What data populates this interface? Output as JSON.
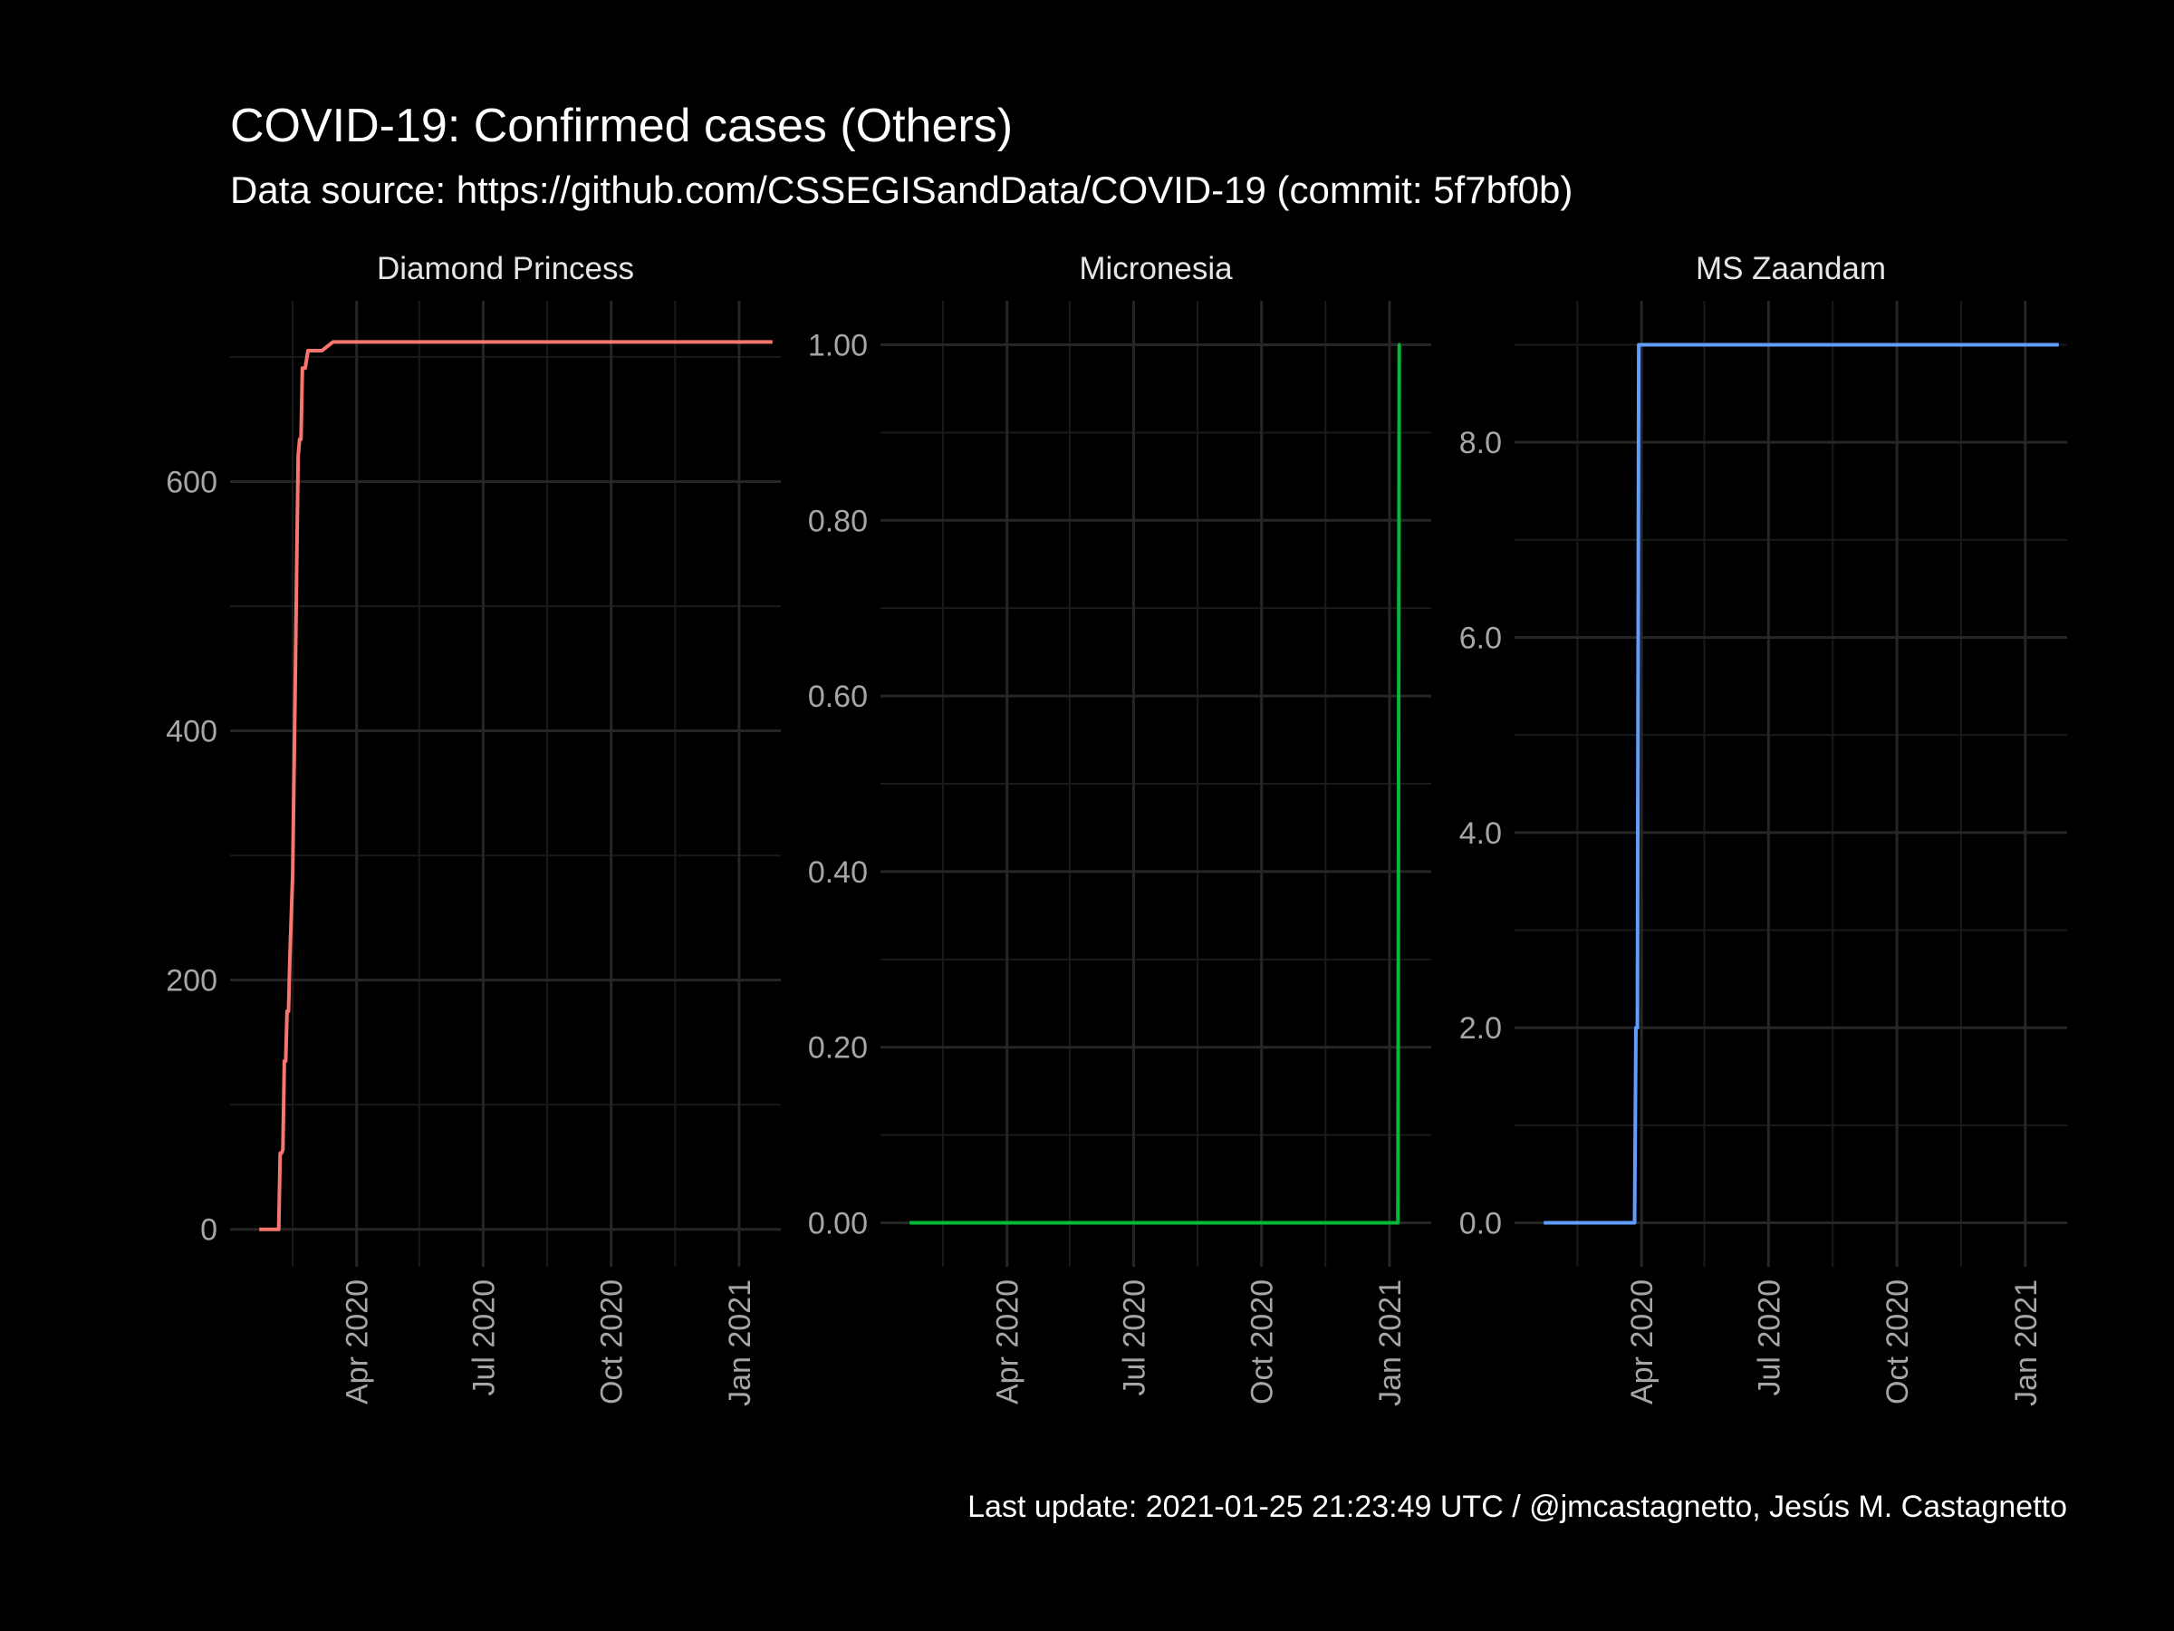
{
  "title": "COVID-19: Confirmed cases (Others)",
  "subtitle": "Data source: https://github.com/CSSEGISandData/COVID-19 (commit: 5f7bf0b)",
  "caption": "Last update:  2021-01-25 21:23:49 UTC / @jmcastagnetto, Jesús M. Castagnetto",
  "chart_data": [
    {
      "type": "line",
      "facet": "Diamond Princess",
      "color": "#F8766D",
      "xlim": [
        "2020-01-01",
        "2021-01-31"
      ],
      "ylim": [
        -30,
        745
      ],
      "y_ticks": [
        0,
        200,
        400,
        600
      ],
      "y_tick_labels": [
        "0",
        "200",
        "400",
        "600"
      ],
      "x_ticks": [
        "2020-04-01",
        "2020-07-01",
        "2020-10-01",
        "2021-01-01"
      ],
      "x_tick_labels": [
        "Apr 2020",
        "Jul 2020",
        "Oct 2020",
        "Jan 2021"
      ],
      "series": [
        {
          "x": [
            "2020-01-22",
            "2020-02-05",
            "2020-02-06",
            "2020-02-07",
            "2020-02-08",
            "2020-02-09",
            "2020-02-10",
            "2020-02-11",
            "2020-02-12",
            "2020-02-13",
            "2020-02-15",
            "2020-02-17",
            "2020-02-18",
            "2020-02-19",
            "2020-02-20",
            "2020-02-21",
            "2020-02-22",
            "2020-02-23",
            "2020-02-24",
            "2020-02-26",
            "2020-03-01",
            "2020-03-07",
            "2020-03-15",
            "2020-03-25",
            "2020-03-31",
            "2021-01-25"
          ],
          "values": [
            0,
            0,
            61,
            61,
            64,
            135,
            135,
            175,
            175,
            218,
            285,
            454,
            542,
            621,
            634,
            634,
            691,
            691,
            691,
            705,
            705,
            705,
            712,
            712,
            712,
            712
          ]
        }
      ]
    },
    {
      "type": "line",
      "facet": "Micronesia",
      "color": "#00BA38",
      "xlim": [
        "2020-01-01",
        "2021-01-31"
      ],
      "ylim": [
        -0.05,
        1.05
      ],
      "y_ticks": [
        0,
        0.2,
        0.4,
        0.6,
        0.8,
        1.0
      ],
      "y_tick_labels": [
        "0.00",
        "0.20",
        "0.40",
        "0.60",
        "0.80",
        "1.00"
      ],
      "x_ticks": [
        "2020-04-01",
        "2020-07-01",
        "2020-10-01",
        "2021-01-01"
      ],
      "x_tick_labels": [
        "Apr 2020",
        "Jul 2020",
        "Oct 2020",
        "Jan 2021"
      ],
      "series": [
        {
          "x": [
            "2020-01-22",
            "2021-01-07",
            "2021-01-08",
            "2021-01-09"
          ],
          "values": [
            0,
            0,
            1,
            1
          ]
        }
      ]
    },
    {
      "type": "line",
      "facet": "MS Zaandam",
      "color": "#619CFF",
      "xlim": [
        "2020-01-01",
        "2021-01-31"
      ],
      "ylim": [
        -0.45,
        9.45
      ],
      "y_ticks": [
        0,
        2,
        4,
        6,
        8
      ],
      "y_tick_labels": [
        "0.0",
        "2.0",
        "4.0",
        "6.0",
        "8.0"
      ],
      "x_ticks": [
        "2020-04-01",
        "2020-07-01",
        "2020-10-01",
        "2021-01-01"
      ],
      "x_tick_labels": [
        "Apr 2020",
        "Jul 2020",
        "Oct 2020",
        "Jan 2021"
      ],
      "series": [
        {
          "x": [
            "2020-01-22",
            "2020-03-27",
            "2020-03-28",
            "2020-03-29",
            "2020-03-30",
            "2021-01-25"
          ],
          "values": [
            0,
            0,
            2,
            2,
            9,
            9
          ]
        }
      ]
    }
  ]
}
